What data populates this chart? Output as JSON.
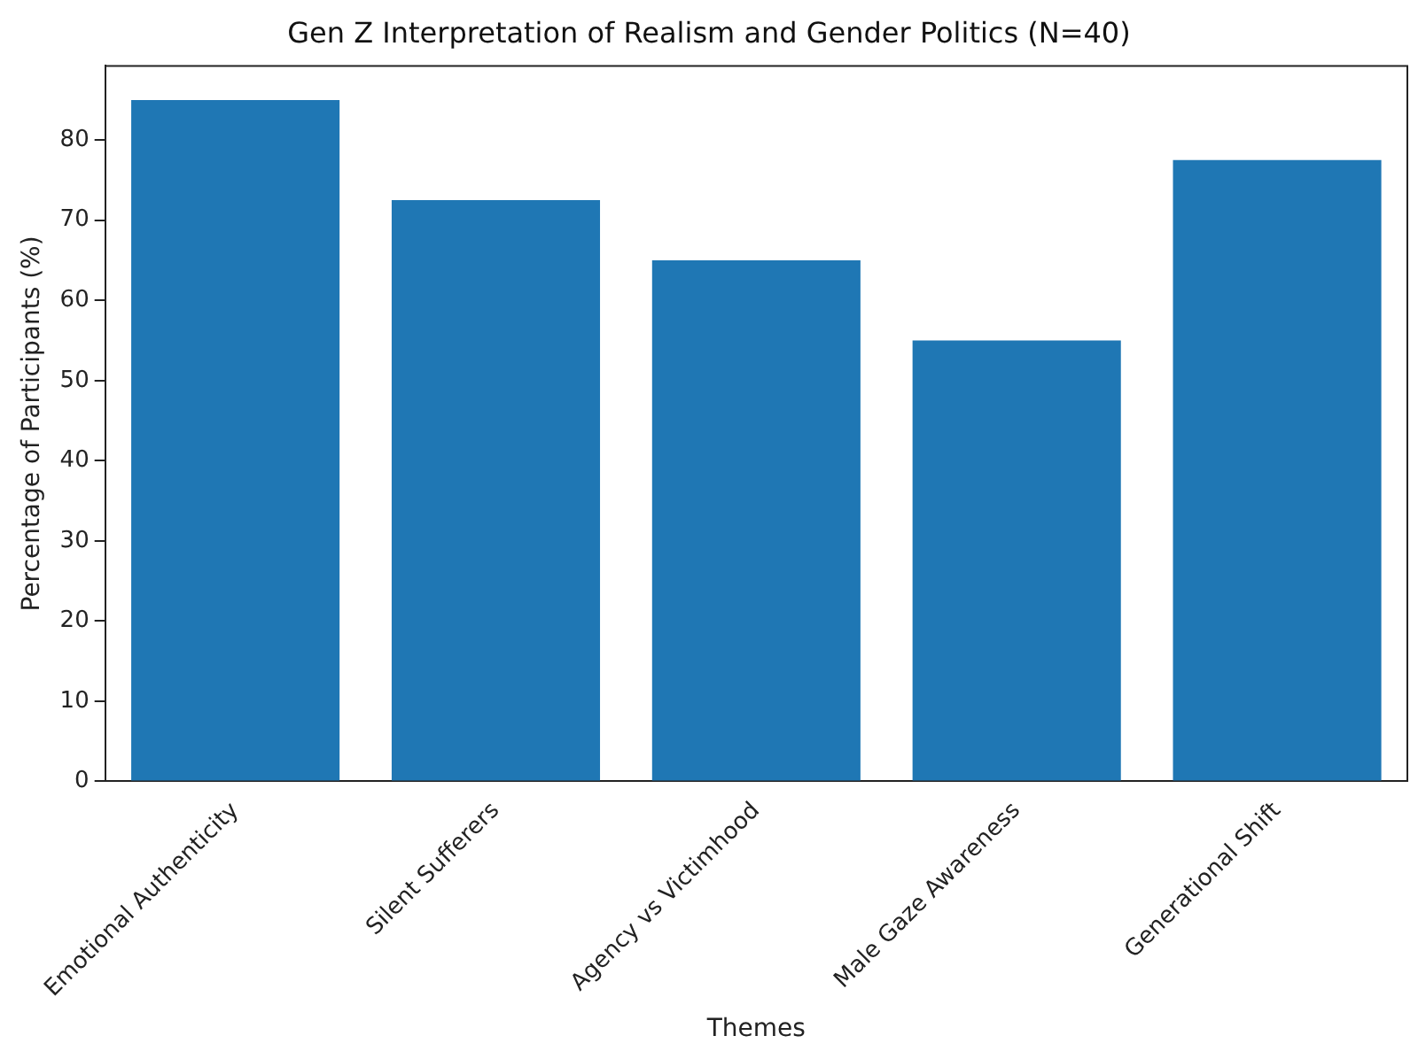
{
  "chart_data": {
    "type": "bar",
    "title": "Gen Z Interpretation of Realism and Gender Politics (N=40)",
    "xlabel": "Themes",
    "ylabel": "Percentage of Participants (%)",
    "categories": [
      "Emotional Authenticity",
      "Silent Sufferers",
      "Agency vs Victimhood",
      "Male Gaze Awareness",
      "Generational Shift"
    ],
    "values": [
      85,
      72.5,
      65,
      55,
      77.5
    ],
    "color": "#1f77b4",
    "ylim": [
      0,
      89.25
    ],
    "yticks": [
      0,
      10,
      20,
      30,
      40,
      50,
      60,
      70,
      80
    ],
    "grid": false,
    "legend": false
  }
}
